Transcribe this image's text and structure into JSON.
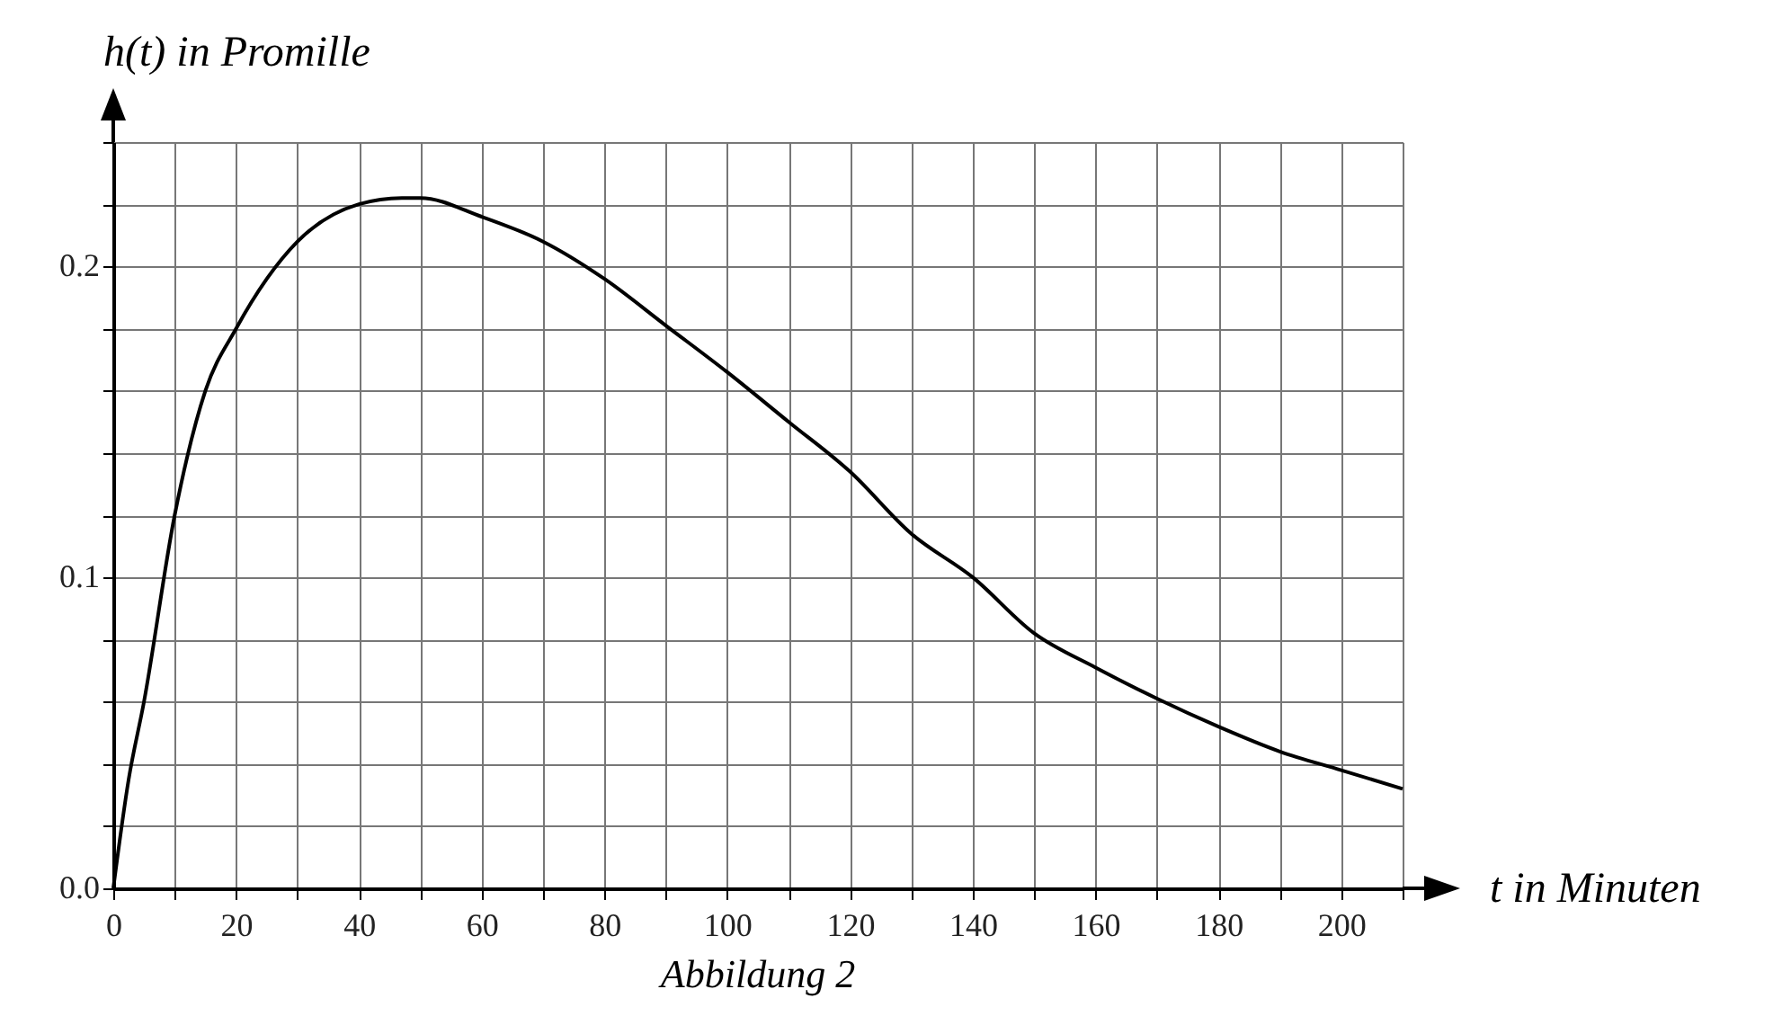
{
  "chart_data": {
    "type": "line",
    "xlabel": "t  in Minuten",
    "ylabel": "h(t)  in Promille",
    "annotations": [
      "Abbildung 2"
    ],
    "x": [
      0,
      2.5,
      5,
      10,
      15,
      20,
      30,
      40,
      47,
      50,
      60,
      70,
      80,
      90,
      100,
      110,
      120,
      130,
      140,
      150,
      160,
      170,
      180,
      190,
      200,
      210
    ],
    "values": [
      0,
      0.035,
      0.06,
      0.12,
      0.16,
      0.18,
      0.208,
      0.22,
      0.222,
      0.222,
      0.216,
      0.208,
      0.196,
      0.181,
      0.166,
      0.15,
      0.134,
      0.114,
      0.1,
      0.082,
      0.071,
      0.061,
      0.052,
      0.044,
      0.038,
      0.032
    ],
    "color": "#000000",
    "xlim": [
      0,
      210
    ],
    "ylim": [
      0,
      0.24
    ],
    "xticks": [
      0,
      {
        "value": 10,
        "label": null
      },
      20,
      {
        "value": 30,
        "label": null
      },
      40,
      {
        "value": 50,
        "label": null
      },
      60,
      {
        "value": 70,
        "label": null
      },
      80,
      {
        "value": 90,
        "label": null
      },
      100,
      {
        "value": 110,
        "label": null
      },
      120,
      {
        "value": 130,
        "label": null
      },
      140,
      {
        "value": 150,
        "label": null
      },
      160,
      {
        "value": 170,
        "label": null
      },
      180,
      {
        "value": 190,
        "label": null
      },
      200,
      {
        "value": 210,
        "label": null
      }
    ],
    "yticks": [
      {
        "value": 0,
        "label": "0.0"
      },
      {
        "value": 0.02,
        "label": null
      },
      {
        "value": 0.04,
        "label": null
      },
      {
        "value": 0.06,
        "label": null
      },
      {
        "value": 0.08,
        "label": null
      },
      0.1,
      {
        "value": 0.12,
        "label": null
      },
      {
        "value": 0.14,
        "label": null
      },
      {
        "value": 0.16,
        "label": null
      },
      {
        "value": 0.18,
        "label": null
      },
      0.2,
      {
        "value": 0.22,
        "label": null
      },
      {
        "value": 0.24,
        "label": null
      }
    ],
    "grid": true
  }
}
